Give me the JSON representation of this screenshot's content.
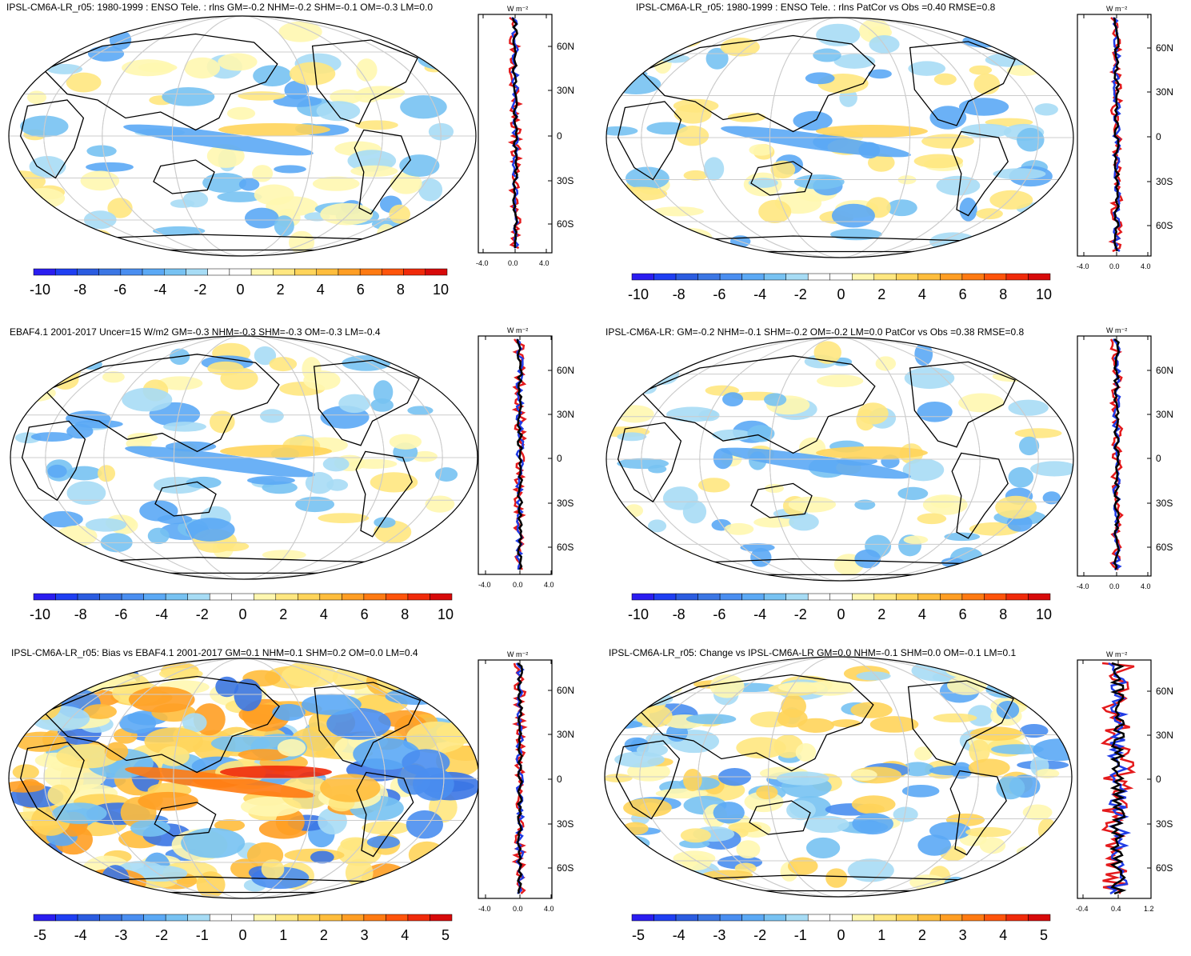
{
  "units_label": "W m⁻²",
  "lat_labels": [
    "60N",
    "30N",
    "0",
    "30S",
    "60S"
  ],
  "colors": {
    "scale": [
      "#2a1df0",
      "#1f3ff2",
      "#2b5ce0",
      "#3b76e4",
      "#4a8ef0",
      "#5ba9f5",
      "#77c2f2",
      "#a7dcf5",
      "#ffffff",
      "#ffffff",
      "#fff7b0",
      "#ffe780",
      "#ffd45a",
      "#ffbd3c",
      "#ff9e24",
      "#ff7a12",
      "#ff540b",
      "#f02a0a",
      "#d70a0a"
    ],
    "obs_line": "#e41a1c",
    "model_line": "#1f3be6",
    "mean_line": "#000000"
  },
  "panels": [
    {
      "title": "IPSL-CM6A-LR_r05: 1980-1999 : ENSO Tele. : rlns GM=-0.2 NHM=-0.2 SHM=-0.1 OM=-0.3 LM=0.0",
      "colorbar_labels": [
        "-10",
        "-8",
        "-6",
        "-4",
        "-2",
        "0",
        "2",
        "4",
        "6",
        "8",
        "10"
      ],
      "profile_xlabels": [
        "-4.0",
        "0.0",
        "4.0"
      ]
    },
    {
      "title": "IPSL-CM6A-LR_r05: 1980-1999 : ENSO Tele. : rlns PatCor vs Obs =0.40 RMSE=0.8",
      "colorbar_labels": [
        "-10",
        "-8",
        "-6",
        "-4",
        "-2",
        "0",
        "2",
        "4",
        "6",
        "8",
        "10"
      ],
      "profile_xlabels": [
        "-4.0",
        "0.0",
        "4.0"
      ]
    },
    {
      "title": "EBAF4.1 2001-2017 Uncer=15 W/m2 GM=-0.3 NHM=-0.3 SHM=-0.3 OM=-0.3 LM=-0.4",
      "colorbar_labels": [
        "-10",
        "-8",
        "-6",
        "-4",
        "-2",
        "0",
        "2",
        "4",
        "6",
        "8",
        "10"
      ],
      "profile_xlabels": [
        "-4.0",
        "0.0",
        "4.0"
      ]
    },
    {
      "title": "IPSL-CM6A-LR: GM=-0.2 NHM=-0.1 SHM=-0.2 OM=-0.2 LM=0.0 PatCor vs Obs =0.38 RMSE=0.8",
      "colorbar_labels": [
        "-10",
        "-8",
        "-6",
        "-4",
        "-2",
        "0",
        "2",
        "4",
        "6",
        "8",
        "10"
      ],
      "profile_xlabels": [
        "-4.0",
        "0.0",
        "4.0"
      ]
    },
    {
      "title": "IPSL-CM6A-LR_r05: Bias vs EBAF4.1 2001-2017 GM=0.1 NHM=0.1 SHM=0.2 OM=0.0 LM=0.4",
      "colorbar_labels": [
        "-5",
        "-4",
        "-3",
        "-2",
        "-1",
        "0",
        "1",
        "2",
        "3",
        "4",
        "5"
      ],
      "profile_xlabels": [
        "-4.0",
        "0.0",
        "4.0"
      ]
    },
    {
      "title": "IPSL-CM6A-LR_r05: Change vs IPSL-CM6A-LR GM=0.0 NHM=-0.1 SHM=0.0 OM=-0.1 LM=0.1",
      "colorbar_labels": [
        "-5",
        "-4",
        "-3",
        "-2",
        "-1",
        "0",
        "1",
        "2",
        "3",
        "4",
        "5"
      ],
      "profile_xlabels": [
        "-0.4",
        "0.4",
        "1.2"
      ]
    }
  ]
}
